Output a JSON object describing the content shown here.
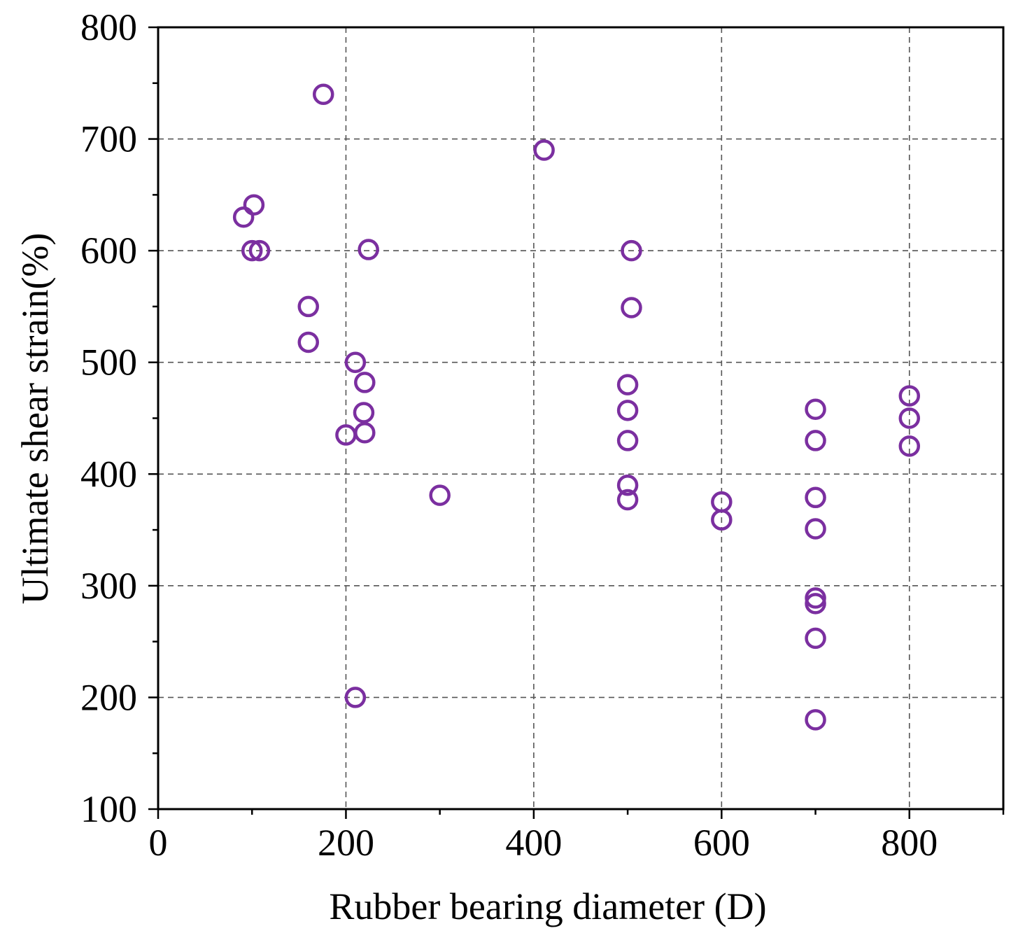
{
  "chart_data": {
    "type": "scatter",
    "title": "",
    "xlabel": "Rubber bearing diameter (D)",
    "ylabel": "Ultimate shear strain(%)",
    "xlim": [
      0,
      900
    ],
    "ylim": [
      100,
      800
    ],
    "xticks": [
      0,
      200,
      400,
      600,
      800
    ],
    "yticks": [
      100,
      200,
      300,
      400,
      500,
      600,
      700,
      800
    ],
    "grid": true,
    "legend": "none",
    "marker": "open-circle",
    "marker_color": "#7b2fa0",
    "series": [
      {
        "points": [
          [
            176,
            740
          ],
          [
            411,
            690
          ],
          [
            91,
            630
          ],
          [
            102,
            641
          ],
          [
            100,
            600
          ],
          [
            108,
            600
          ],
          [
            224,
            601
          ],
          [
            160,
            550
          ],
          [
            160,
            518
          ],
          [
            210,
            500
          ],
          [
            220,
            482
          ],
          [
            219,
            455
          ],
          [
            200,
            435
          ],
          [
            220,
            437
          ],
          [
            210,
            200
          ],
          [
            300,
            381
          ],
          [
            504,
            600
          ],
          [
            504,
            549
          ],
          [
            500,
            480
          ],
          [
            500,
            457
          ],
          [
            500,
            430
          ],
          [
            500,
            390
          ],
          [
            500,
            377
          ],
          [
            600,
            375
          ],
          [
            600,
            359
          ],
          [
            700,
            458
          ],
          [
            700,
            430
          ],
          [
            700,
            379
          ],
          [
            700,
            351
          ],
          [
            700,
            289
          ],
          [
            700,
            284
          ],
          [
            700,
            253
          ],
          [
            700,
            180
          ],
          [
            800,
            470
          ],
          [
            800,
            450
          ],
          [
            800,
            425
          ]
        ]
      }
    ]
  }
}
